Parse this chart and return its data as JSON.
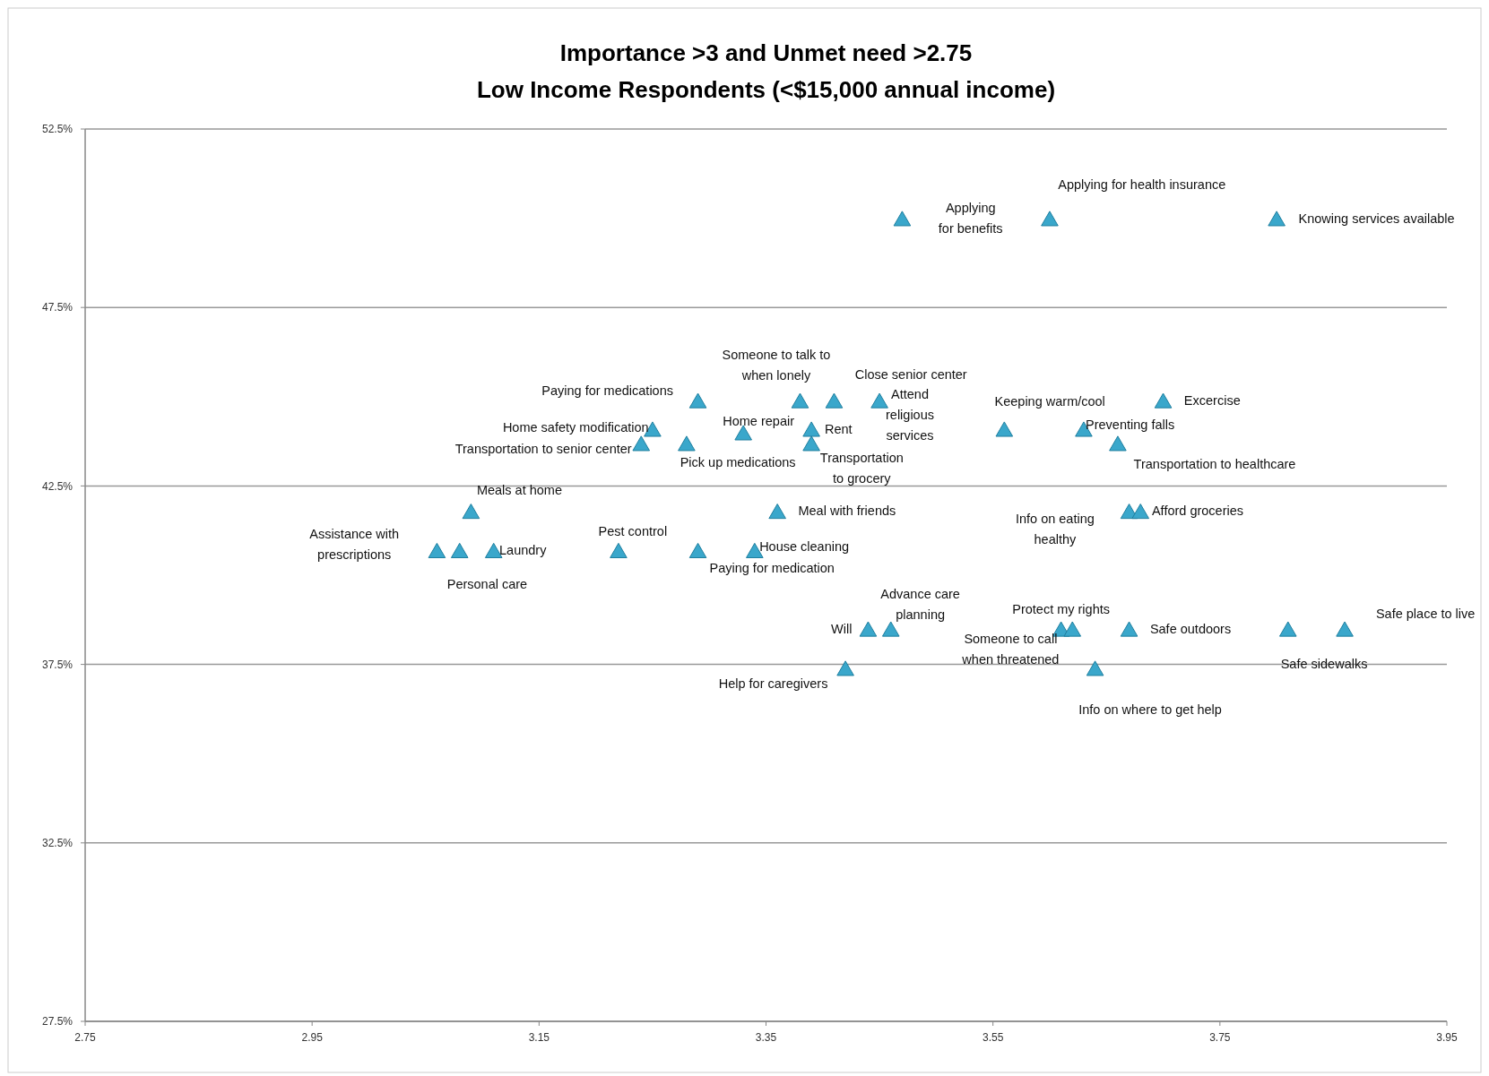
{
  "chart_data": {
    "type": "scatter",
    "title": "Importance >3 and Unmet need >2.75",
    "subtitle": "Low Income Respondents (<$15,000 annual income)",
    "series": [
      {
        "color": "#3aa7cb",
        "x": [
          3.47,
          3.6,
          3.8,
          3.29,
          3.38,
          3.41,
          3.45,
          3.7,
          3.25,
          3.33,
          3.39,
          3.56,
          3.63,
          3.24,
          3.28,
          3.39,
          3.66,
          3.09,
          3.36,
          3.67,
          3.68,
          3.06,
          3.08,
          3.11,
          3.22,
          3.29,
          3.34,
          3.44,
          3.46,
          3.61,
          3.62,
          3.67,
          3.81,
          3.86,
          3.42,
          3.64
        ],
        "values": [
          50.0,
          50.0,
          50.0,
          44.9,
          44.9,
          44.9,
          44.9,
          44.9,
          44.1,
          44.0,
          44.1,
          44.1,
          44.1,
          43.7,
          43.7,
          43.7,
          43.7,
          41.8,
          41.8,
          41.8,
          41.8,
          40.7,
          40.7,
          40.7,
          40.7,
          40.7,
          40.7,
          38.5,
          38.5,
          38.5,
          38.5,
          38.5,
          38.5,
          38.5,
          37.4,
          37.4
        ]
      }
    ],
    "annotations": [
      {
        "text": "Applying for benefits",
        "x": 3.47,
        "y": 50.0
      },
      {
        "text": "Applying for health insurance",
        "x": 3.6,
        "y": 50.0
      },
      {
        "text": "Knowing services available",
        "x": 3.8,
        "y": 50.0
      },
      {
        "text": "Paying for medications",
        "x": 3.29,
        "y": 44.9
      },
      {
        "text": "Someone to talk to when lonely",
        "x": 3.38,
        "y": 44.9
      },
      {
        "text": "Close senior center",
        "x": 3.41,
        "y": 44.9
      },
      {
        "text": "Attend religious services",
        "x": 3.45,
        "y": 44.9
      },
      {
        "text": "Excercise",
        "x": 3.7,
        "y": 44.9
      },
      {
        "text": "Home safety modification",
        "x": 3.25,
        "y": 44.1
      },
      {
        "text": "Home repair",
        "x": 3.33,
        "y": 44.0
      },
      {
        "text": "Rent",
        "x": 3.39,
        "y": 44.1
      },
      {
        "text": "Keeping warm/cool",
        "x": 3.56,
        "y": 44.1
      },
      {
        "text": "Preventing falls",
        "x": 3.63,
        "y": 44.1
      },
      {
        "text": "Transportation to senior center",
        "x": 3.24,
        "y": 43.7
      },
      {
        "text": "Pick up medications",
        "x": 3.28,
        "y": 43.7
      },
      {
        "text": "Transportation to grocery",
        "x": 3.39,
        "y": 43.7
      },
      {
        "text": "Transportation to healthcare",
        "x": 3.66,
        "y": 43.7
      },
      {
        "text": "Meals at home",
        "x": 3.09,
        "y": 41.8
      },
      {
        "text": "Meal with friends",
        "x": 3.36,
        "y": 41.8
      },
      {
        "text": "Info on eating healthy",
        "x": 3.67,
        "y": 41.8
      },
      {
        "text": "Afford groceries",
        "x": 3.68,
        "y": 41.8
      },
      {
        "text": "Assistance with prescriptions",
        "x": 3.06,
        "y": 40.7
      },
      {
        "text": "Personal care",
        "x": 3.08,
        "y": 40.7
      },
      {
        "text": "Laundry",
        "x": 3.11,
        "y": 40.7
      },
      {
        "text": "Pest control",
        "x": 3.22,
        "y": 40.7
      },
      {
        "text": "Paying for medication",
        "x": 3.29,
        "y": 40.7
      },
      {
        "text": "House cleaning",
        "x": 3.34,
        "y": 40.7
      },
      {
        "text": "Will",
        "x": 3.44,
        "y": 38.5
      },
      {
        "text": "Advance care planning",
        "x": 3.46,
        "y": 38.5
      },
      {
        "text": "Protect my rights",
        "x": 3.61,
        "y": 38.5
      },
      {
        "text": "Someone to call when threatened",
        "x": 3.62,
        "y": 38.5
      },
      {
        "text": "Safe outdoors",
        "x": 3.67,
        "y": 38.5
      },
      {
        "text": "Safe sidewalks",
        "x": 3.81,
        "y": 38.5
      },
      {
        "text": "Safe place to live",
        "x": 3.86,
        "y": 38.5
      },
      {
        "text": "Help for caregivers",
        "x": 3.42,
        "y": 37.4
      },
      {
        "text": "Info on where to get help",
        "x": 3.64,
        "y": 37.4
      }
    ],
    "xlim": [
      2.75,
      3.95
    ],
    "xticks": [
      2.75,
      2.95,
      3.15,
      3.35,
      3.55,
      3.75,
      3.95
    ],
    "ylim": [
      27.5,
      52.5
    ],
    "yticks": [
      {
        "value": 27.5,
        "label": "27.5%"
      },
      {
        "value": 32.5,
        "label": "32.5%"
      },
      {
        "value": 37.5,
        "label": "37.5%"
      },
      {
        "value": 42.5,
        "label": "42.5%"
      },
      {
        "value": 47.5,
        "label": "47.5%"
      },
      {
        "value": 52.5,
        "label": "52.5%"
      }
    ],
    "grid": "y",
    "marker": "triangle"
  }
}
